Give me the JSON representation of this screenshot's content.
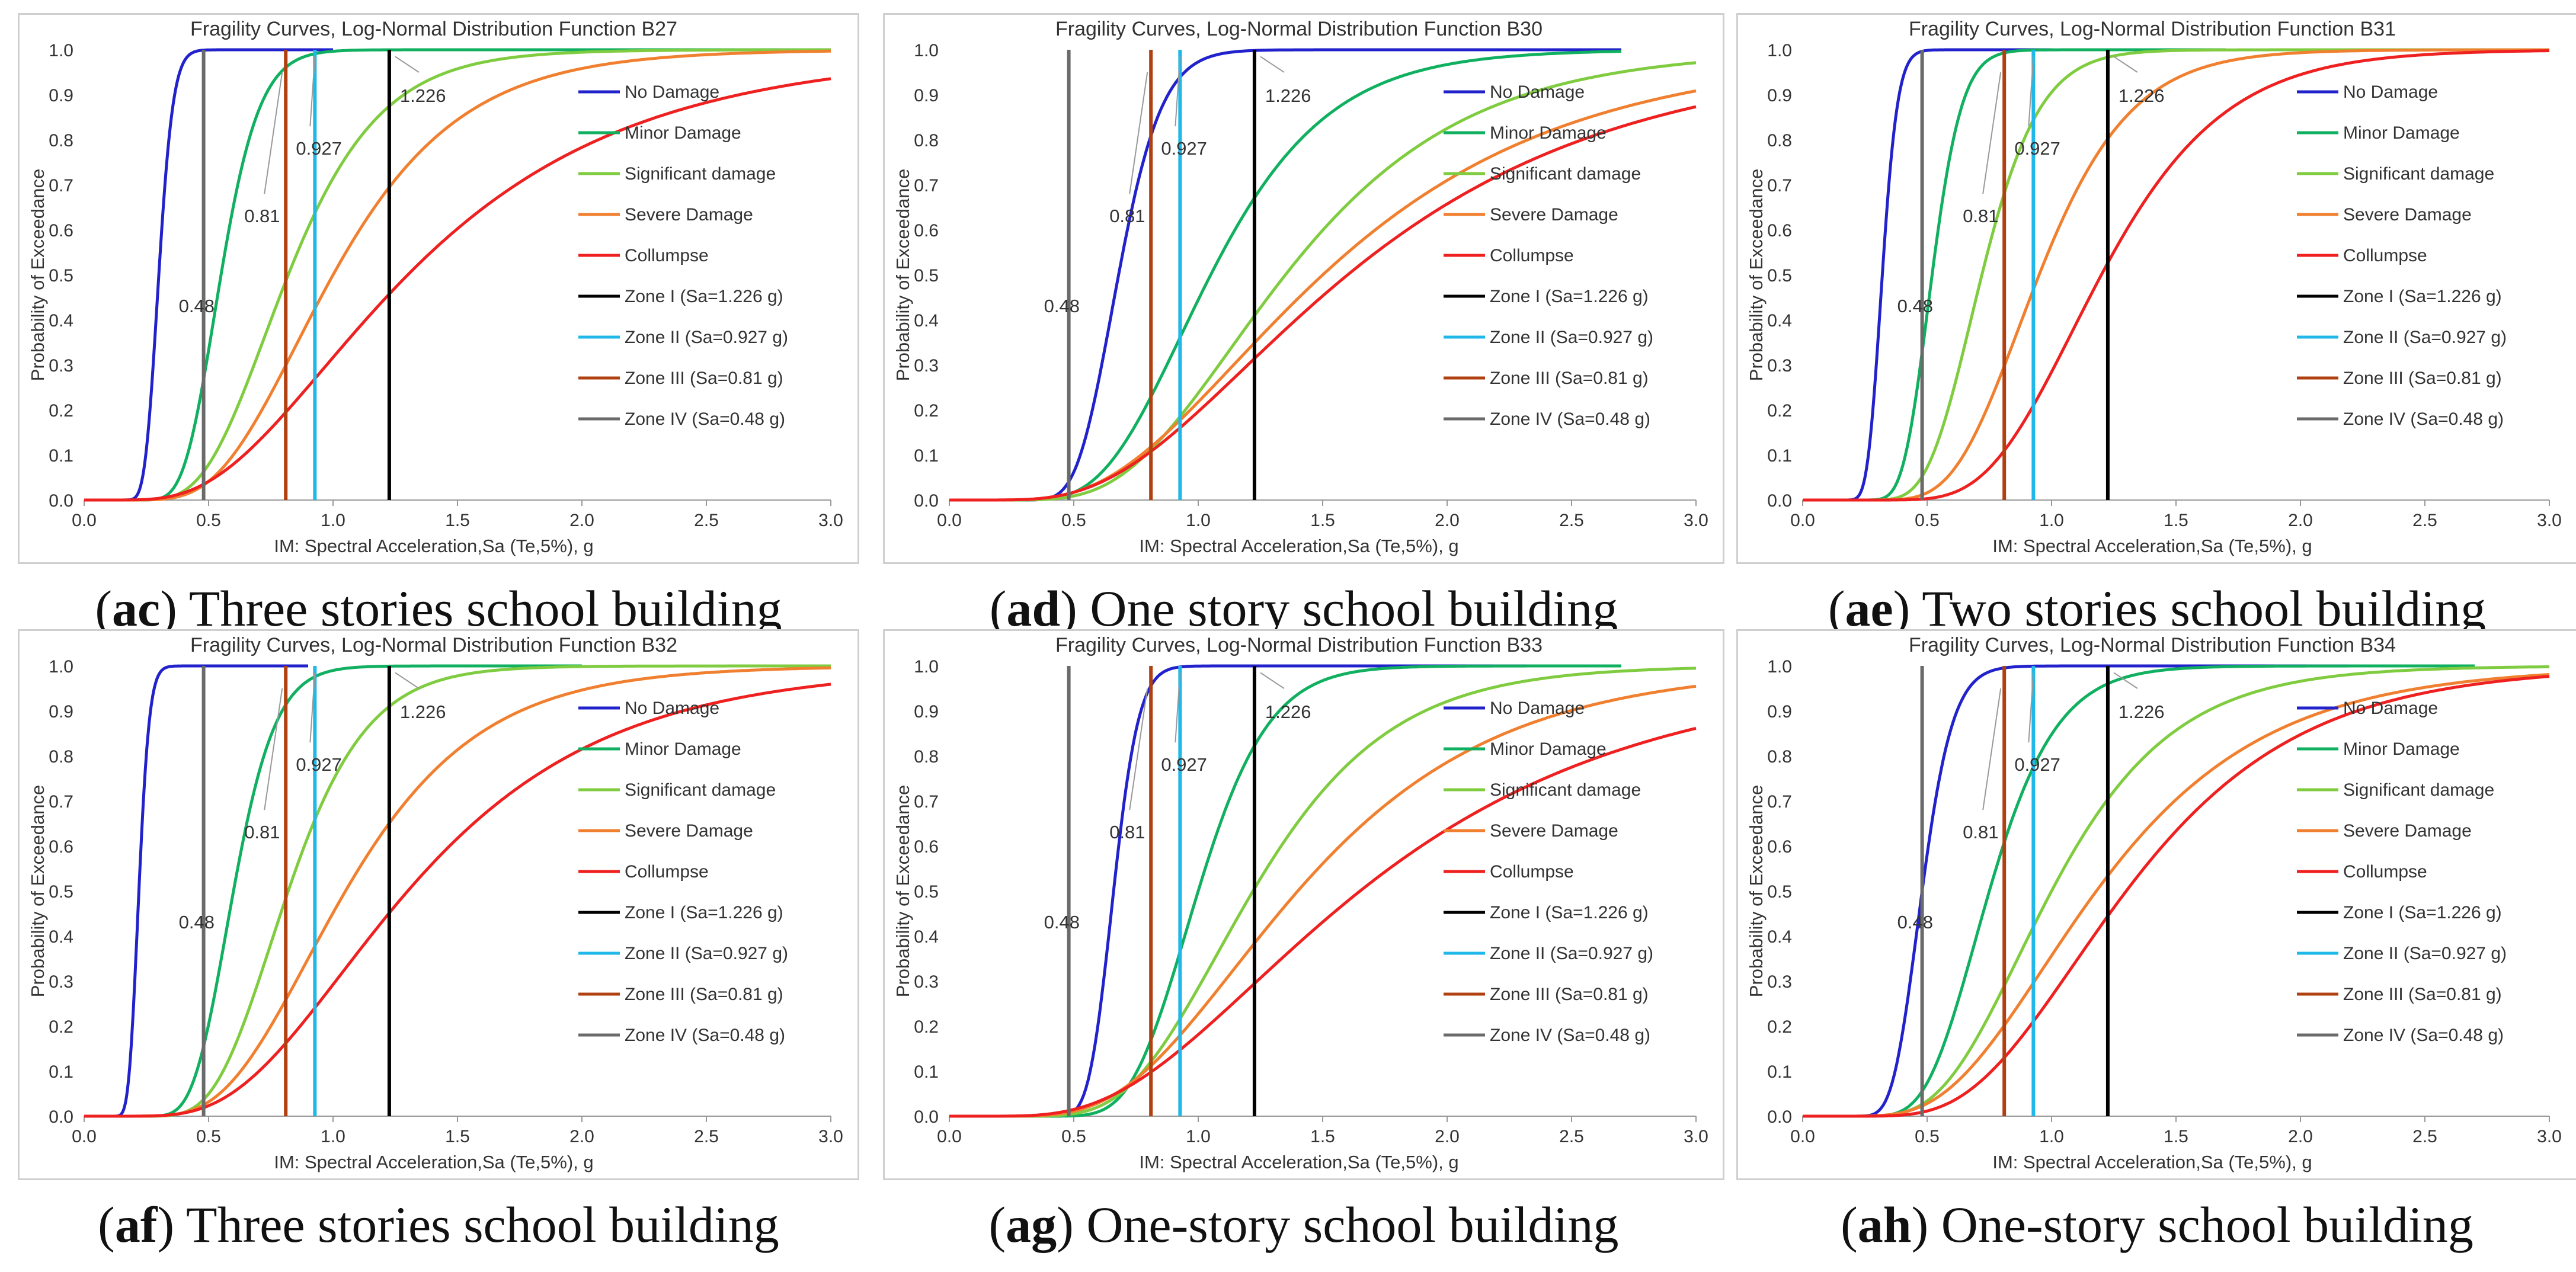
{
  "colors": {
    "no_damage": "#2222cc",
    "minor": "#10b060",
    "significant": "#80cc40",
    "severe": "#f08030",
    "collapse": "#ee2020",
    "zone1": "#000000",
    "zone2": "#20b8e8",
    "zone3": "#b04010",
    "zone4": "#6a6a6a"
  },
  "legend_items": [
    "No Damage",
    "Minor Damage",
    "Significant damage",
    "Severe Damage",
    "Collumpse",
    "Zone I (Sa=1.226 g)",
    "Zone II (Sa=0.927 g)",
    "Zone III (Sa=0.81 g)",
    "Zone IV (Sa=0.48 g)"
  ],
  "chart_data": [
    {
      "type": "line",
      "title": "Fragility Curves, Log-Normal Distribution Function B27",
      "xlabel": "IM: Spectral Acceleration,Sa (Te,5%), g",
      "ylabel": "Probability of  Exceedance",
      "xlim": [
        0,
        3
      ],
      "ylim": [
        0,
        1
      ],
      "xticks": [
        "0.0",
        "0.5",
        "1.0",
        "1.5",
        "2.0",
        "2.5",
        "3.0"
      ],
      "yticks": [
        "0.0",
        "0.1",
        "0.2",
        "0.3",
        "0.4",
        "0.5",
        "0.6",
        "0.7",
        "0.8",
        "0.9",
        "1.0"
      ],
      "series": [
        {
          "name": "No Damage",
          "median": 0.3,
          "beta": 0.15,
          "xmax": 1.0
        },
        {
          "name": "Minor Damage",
          "median": 0.55,
          "beta": 0.22,
          "xmax": 3.0
        },
        {
          "name": "Significant damage",
          "median": 0.82,
          "beta": 0.35,
          "xmax": 3.0
        },
        {
          "name": "Severe Damage",
          "median": 1.0,
          "beta": 0.4,
          "xmax": 3.0
        },
        {
          "name": "Collumpse",
          "median": 1.3,
          "beta": 0.55,
          "xmax": 3.0
        }
      ],
      "zones": [
        {
          "name": "Zone I (Sa=1.226 g)",
          "value": 1.226
        },
        {
          "name": "Zone II (Sa=0.927 g)",
          "value": 0.927
        },
        {
          "name": "Zone III (Sa=0.81 g)",
          "value": 0.81
        },
        {
          "name": "Zone IV (Sa=0.48 g)",
          "value": 0.48
        }
      ],
      "annotations": [
        "1.226",
        "0.927",
        "0.81",
        "0.48"
      ]
    },
    {
      "type": "line",
      "title": "Fragility Curves, Log-Normal Distribution Function B30",
      "xlabel": "IM: Spectral Acceleration,Sa (Te,5%), g",
      "ylabel": "Probability of  Exceedance",
      "xlim": [
        0,
        3
      ],
      "ylim": [
        0,
        1
      ],
      "xticks": [
        "0.0",
        "0.5",
        "1.0",
        "1.5",
        "2.0",
        "2.5",
        "3.0"
      ],
      "yticks": [
        "0.0",
        "0.1",
        "0.2",
        "0.3",
        "0.4",
        "0.5",
        "0.6",
        "0.7",
        "0.8",
        "0.9",
        "1.0"
      ],
      "series": [
        {
          "name": "No Damage",
          "median": 0.68,
          "beta": 0.2,
          "xmax": 2.7
        },
        {
          "name": "Minor Damage",
          "median": 1.05,
          "beta": 0.35,
          "xmax": 2.7
        },
        {
          "name": "Significant damage",
          "median": 1.35,
          "beta": 0.42,
          "xmax": 3.0
        },
        {
          "name": "Severe Damage",
          "median": 1.5,
          "beta": 0.52,
          "xmax": 3.0
        },
        {
          "name": "Collumpse",
          "median": 1.6,
          "beta": 0.55,
          "xmax": 3.0
        }
      ],
      "zones": [
        {
          "name": "Zone I (Sa=1.226 g)",
          "value": 1.226
        },
        {
          "name": "Zone II (Sa=0.927 g)",
          "value": 0.927
        },
        {
          "name": "Zone III (Sa=0.81 g)",
          "value": 0.81
        },
        {
          "name": "Zone IV (Sa=0.48 g)",
          "value": 0.48
        }
      ],
      "annotations": [
        "1.226",
        "0.927",
        "0.81",
        "0.48"
      ]
    },
    {
      "type": "line",
      "title": "Fragility Curves, Log-Normal Distribution Function B31",
      "xlabel": "IM: Spectral Acceleration,Sa (Te,5%), g",
      "ylabel": "Probability of  Exceedance",
      "xlim": [
        0,
        3
      ],
      "ylim": [
        0,
        1
      ],
      "xticks": [
        "0.0",
        "0.5",
        "1.0",
        "1.5",
        "2.0",
        "2.5",
        "3.0"
      ],
      "yticks": [
        "0.0",
        "0.1",
        "0.2",
        "0.3",
        "0.4",
        "0.5",
        "0.6",
        "0.7",
        "0.8",
        "0.9",
        "1.0"
      ],
      "series": [
        {
          "name": "No Damage",
          "median": 0.32,
          "beta": 0.15,
          "xmax": 1.0
        },
        {
          "name": "Minor Damage",
          "median": 0.52,
          "beta": 0.18,
          "xmax": 1.7
        },
        {
          "name": "Significant damage",
          "median": 0.72,
          "beta": 0.25,
          "xmax": 3.0
        },
        {
          "name": "Severe Damage",
          "median": 0.95,
          "beta": 0.3,
          "xmax": 3.0
        },
        {
          "name": "Collumpse",
          "median": 1.2,
          "beta": 0.32,
          "xmax": 3.0
        }
      ],
      "zones": [
        {
          "name": "Zone I (Sa=1.226 g)",
          "value": 1.226
        },
        {
          "name": "Zone II (Sa=0.927 g)",
          "value": 0.927
        },
        {
          "name": "Zone III (Sa=0.81 g)",
          "value": 0.81
        },
        {
          "name": "Zone IV (Sa=0.48 g)",
          "value": 0.48
        }
      ],
      "annotations": [
        "1.226",
        "0.927",
        "0.81",
        "0.48"
      ]
    },
    {
      "type": "line",
      "title": "Fragility Curves, Log-Normal Distribution Function B32",
      "xlabel": "IM: Spectral Acceleration,Sa (Te,5%), g",
      "ylabel": "Probability of  Exceedance",
      "xlim": [
        0,
        3
      ],
      "ylim": [
        0,
        1
      ],
      "xticks": [
        "0.0",
        "0.5",
        "1.0",
        "1.5",
        "2.0",
        "2.5",
        "3.0"
      ],
      "yticks": [
        "0.0",
        "0.1",
        "0.2",
        "0.3",
        "0.4",
        "0.5",
        "0.6",
        "0.7",
        "0.8",
        "0.9",
        "1.0"
      ],
      "series": [
        {
          "name": "No Damage",
          "median": 0.22,
          "beta": 0.15,
          "xmax": 0.9
        },
        {
          "name": "Minor Damage",
          "median": 0.6,
          "beta": 0.22,
          "xmax": 2.0
        },
        {
          "name": "Significant damage",
          "median": 0.82,
          "beta": 0.3,
          "xmax": 3.0
        },
        {
          "name": "Severe Damage",
          "median": 1.05,
          "beta": 0.4,
          "xmax": 3.0
        },
        {
          "name": "Collumpse",
          "median": 1.3,
          "beta": 0.48,
          "xmax": 3.0
        }
      ],
      "zones": [
        {
          "name": "Zone I (Sa=1.226 g)",
          "value": 1.226
        },
        {
          "name": "Zone II (Sa=0.927 g)",
          "value": 0.927
        },
        {
          "name": "Zone III (Sa=0.81 g)",
          "value": 0.81
        },
        {
          "name": "Zone IV (Sa=0.48 g)",
          "value": 0.48
        }
      ],
      "annotations": [
        "1.226",
        "0.927",
        "0.81",
        "0.48"
      ]
    },
    {
      "type": "line",
      "title": "Fragility Curves, Log-Normal Distribution Function B33",
      "xlabel": "IM: Spectral Acceleration,Sa (Te,5%), g",
      "ylabel": "Probability of  Exceedance",
      "xlim": [
        0,
        3
      ],
      "ylim": [
        0,
        1
      ],
      "xticks": [
        "0.0",
        "0.5",
        "1.0",
        "1.5",
        "2.0",
        "2.5",
        "3.0"
      ],
      "yticks": [
        "0.0",
        "0.1",
        "0.2",
        "0.3",
        "0.4",
        "0.5",
        "0.6",
        "0.7",
        "0.8",
        "0.9",
        "1.0"
      ],
      "series": [
        {
          "name": "No Damage",
          "median": 0.66,
          "beta": 0.12,
          "xmax": 2.7
        },
        {
          "name": "Minor Damage",
          "median": 1.0,
          "beta": 0.22,
          "xmax": 2.7
        },
        {
          "name": "Significant damage",
          "median": 1.22,
          "beta": 0.35,
          "xmax": 3.0
        },
        {
          "name": "Severe Damage",
          "median": 1.4,
          "beta": 0.45,
          "xmax": 3.0
        },
        {
          "name": "Collumpse",
          "median": 1.65,
          "beta": 0.55,
          "xmax": 3.0
        }
      ],
      "zones": [
        {
          "name": "Zone I (Sa=1.226 g)",
          "value": 1.226
        },
        {
          "name": "Zone II (Sa=0.927 g)",
          "value": 0.927
        },
        {
          "name": "Zone III (Sa=0.81 g)",
          "value": 0.81
        },
        {
          "name": "Zone IV (Sa=0.48 g)",
          "value": 0.48
        }
      ],
      "annotations": [
        "1.226",
        "0.927",
        "0.81",
        "0.48"
      ]
    },
    {
      "type": "line",
      "title": "Fragility Curves, Log-Normal Distribution Function B34",
      "xlabel": "IM: Spectral Acceleration,Sa (Te,5%), g",
      "ylabel": "Probability of  Exceedance",
      "xlim": [
        0,
        3
      ],
      "ylim": [
        0,
        1
      ],
      "xticks": [
        "0.0",
        "0.5",
        "1.0",
        "1.5",
        "2.0",
        "2.5",
        "3.0"
      ],
      "yticks": [
        "0.0",
        "0.1",
        "0.2",
        "0.3",
        "0.4",
        "0.5",
        "0.6",
        "0.7",
        "0.8",
        "0.9",
        "1.0"
      ],
      "series": [
        {
          "name": "No Damage",
          "median": 0.48,
          "beta": 0.2,
          "xmax": 2.7
        },
        {
          "name": "Minor Damage",
          "median": 0.75,
          "beta": 0.28,
          "xmax": 2.7
        },
        {
          "name": "Significant damage",
          "median": 1.0,
          "beta": 0.38,
          "xmax": 3.0
        },
        {
          "name": "Severe Damage",
          "median": 1.18,
          "beta": 0.45,
          "xmax": 3.0
        },
        {
          "name": "Collumpse",
          "median": 1.3,
          "beta": 0.42,
          "xmax": 3.0
        }
      ],
      "zones": [
        {
          "name": "Zone I (Sa=1.226 g)",
          "value": 1.226
        },
        {
          "name": "Zone II (Sa=0.927 g)",
          "value": 0.927
        },
        {
          "name": "Zone III (Sa=0.81 g)",
          "value": 0.81
        },
        {
          "name": "Zone IV (Sa=0.48 g)",
          "value": 0.48
        }
      ],
      "annotations": [
        "1.226",
        "0.927",
        "0.81",
        "0.48"
      ]
    }
  ],
  "captions": [
    {
      "label": "ac",
      "text": "Three stories school building"
    },
    {
      "label": "ad",
      "text": "One story school building"
    },
    {
      "label": "ae",
      "text": "Two stories school building"
    },
    {
      "label": "af",
      "text": "Three stories school building"
    },
    {
      "label": "ag",
      "text": "One-story school building"
    },
    {
      "label": "ah",
      "text": "One-story school building"
    }
  ]
}
